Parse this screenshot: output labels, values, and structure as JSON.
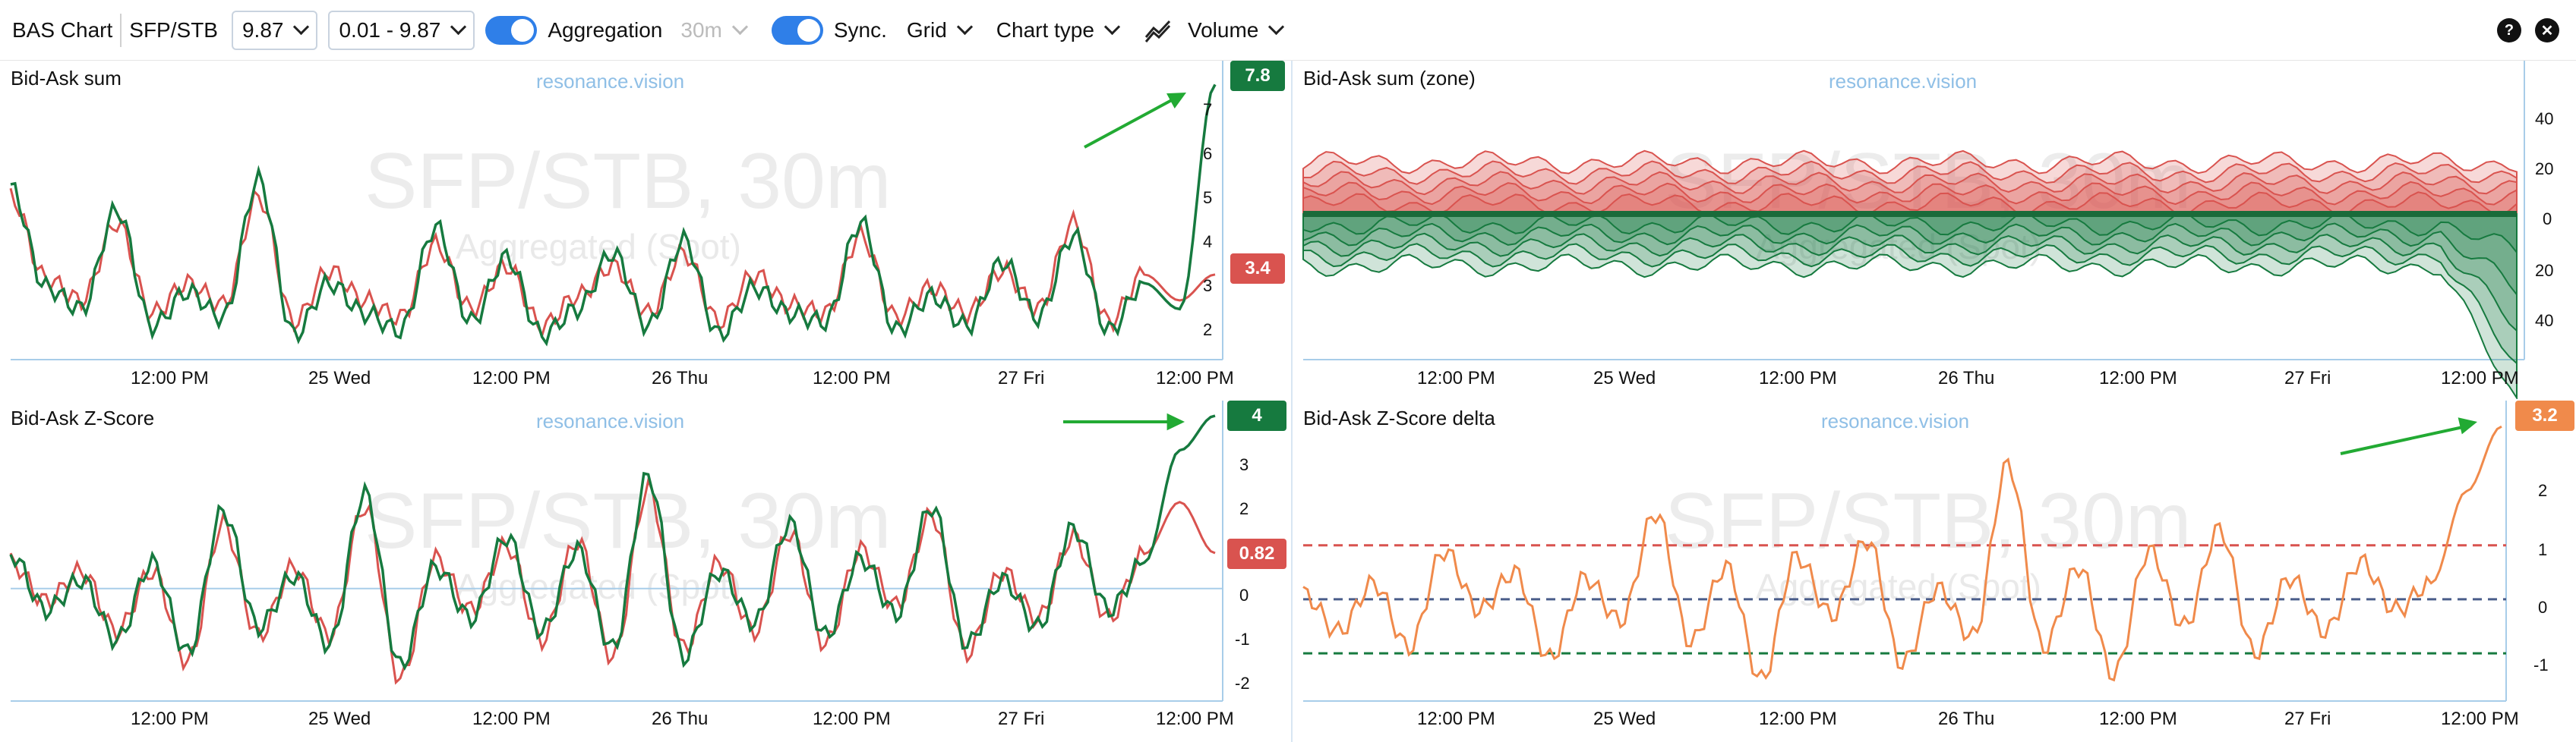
{
  "toolbar": {
    "title": "BAS Chart",
    "symbol": "SFP/STB",
    "price_select": "9.87",
    "range_select": "0.01 - 9.87",
    "aggregation_label": "Aggregation",
    "interval_label": "30m",
    "sync_label": "Sync.",
    "grid_label": "Grid",
    "chart_type_label": "Chart type",
    "volume_label": "Volume",
    "help_glyph": "?",
    "close_glyph": "✕"
  },
  "watermark": {
    "brand": "resonance.vision",
    "main": "SFP/STB, 30m",
    "sub": "Aggregated (Spot)"
  },
  "x_labels": [
    "12:00 PM",
    "25 Wed",
    "12:00 PM",
    "26 Thu",
    "12:00 PM",
    "27 Fri",
    "12:00 PM"
  ],
  "colors": {
    "red": "#d9534f",
    "green": "#167a3f",
    "orange": "#f08a4b",
    "blue": "#2f7fe8",
    "axis": "#a8cde9"
  },
  "panels": {
    "bas": {
      "title": "Bid-Ask sum",
      "y_ticks": [
        "2",
        "3",
        "4",
        "5",
        "6",
        "7"
      ],
      "tag_green": "7.8",
      "tag_red": "3.4"
    },
    "zone": {
      "title": "Bid-Ask sum (zone)",
      "y_ticks": [
        "40",
        "20",
        "0",
        "20",
        "40"
      ]
    },
    "z": {
      "title": "Bid-Ask Z-Score",
      "y_ticks": [
        "3",
        "2",
        "1",
        "0",
        "-1",
        "-2"
      ],
      "tag_green": "4",
      "tag_red": "0.82"
    },
    "zdelta": {
      "title": "Bid-Ask Z-Score delta",
      "y_ticks": [
        "2",
        "1",
        "0",
        "-1"
      ],
      "tag_orange": "3.2"
    }
  },
  "chart_data": [
    {
      "type": "line",
      "title": "Bid-Ask sum",
      "ylim": [
        1.5,
        8
      ],
      "series": [
        {
          "values": [
            5.4,
            3.1,
            2.6,
            4.9,
            2.2,
            3.0,
            2.4,
            5.6,
            2.0,
            3.2,
            2.5,
            2.1,
            4.5,
            2.3,
            3.8,
            2.0,
            2.6,
            3.9,
            2.2,
            4.2,
            2.0,
            3.1,
            2.5,
            2.3,
            4.6,
            2.1,
            2.9,
            2.2,
            3.7,
            2.4,
            4.3,
            2.1,
            3.2,
            2.6,
            7.8
          ]
        },
        {
          "values": [
            5.2,
            3.3,
            2.8,
            4.6,
            2.5,
            3.2,
            2.7,
            5.2,
            2.3,
            3.5,
            2.8,
            2.4,
            4.1,
            2.6,
            3.6,
            2.2,
            2.9,
            3.6,
            2.5,
            3.9,
            2.3,
            3.4,
            2.7,
            2.5,
            4.3,
            2.4,
            3.1,
            2.5,
            3.5,
            2.6,
            4.6,
            2.3,
            3.4,
            2.8,
            3.4
          ]
        }
      ]
    },
    {
      "type": "area",
      "title": "Bid-Ask sum (zone)",
      "ylim": [
        -50,
        50
      ]
    },
    {
      "type": "line",
      "title": "Bid-Ask Z-Score",
      "ylim": [
        -2.5,
        4
      ],
      "series": [
        {
          "values": [
            0.8,
            -0.5,
            0.2,
            -1.2,
            0.6,
            -1.5,
            1.8,
            -0.9,
            0.3,
            -1.3,
            2.2,
            -1.8,
            0.5,
            -0.7,
            1.2,
            -1.0,
            0.9,
            -1.4,
            2.6,
            -1.6,
            0.4,
            -0.8,
            1.5,
            -1.1,
            0.7,
            -0.6,
            1.9,
            -1.3,
            0.2,
            -0.9,
            1.4,
            -0.5,
            0.6,
            3.2,
            4.0
          ]
        },
        {
          "values": [
            0.6,
            -0.3,
            0.4,
            -1.0,
            0.4,
            -1.7,
            1.5,
            -1.1,
            0.5,
            -1.1,
            1.9,
            -2.1,
            0.7,
            -0.5,
            1.0,
            -1.2,
            1.1,
            -1.6,
            2.3,
            -1.4,
            0.6,
            -1.0,
            1.3,
            -1.3,
            0.9,
            -0.4,
            1.7,
            -1.5,
            0.4,
            -0.7,
            1.2,
            -0.7,
            0.8,
            2.0,
            0.82
          ]
        }
      ]
    },
    {
      "type": "line",
      "title": "Bid-Ask Z-Score delta",
      "ylim": [
        -1.8,
        3.4
      ],
      "reference_lines": [
        1,
        0,
        -1
      ],
      "series": [
        {
          "values": [
            0.1,
            -0.6,
            0.3,
            -0.9,
            0.9,
            -0.2,
            0.5,
            -1.1,
            0.4,
            -0.4,
            1.6,
            -0.8,
            0.6,
            -1.5,
            0.8,
            -0.3,
            1.1,
            -1.2,
            0.2,
            -0.7,
            2.5,
            -0.9,
            0.6,
            -1.4,
            0.9,
            -0.5,
            1.3,
            -1.0,
            0.4,
            -0.6,
            0.7,
            -0.2,
            0.3,
            2.0,
            3.2
          ]
        }
      ]
    }
  ]
}
